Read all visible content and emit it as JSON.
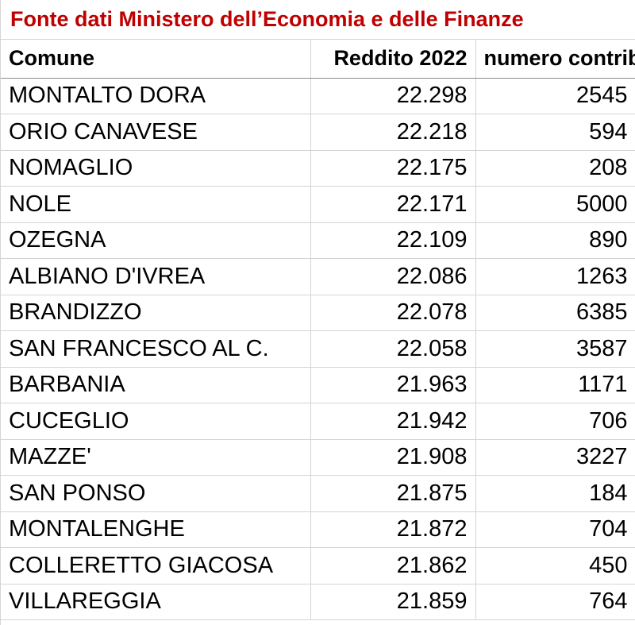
{
  "title": {
    "text": "Fonte dati Ministero dell’Economia e delle Finanze",
    "color": "#c00000"
  },
  "headers": {
    "comune": "Comune",
    "reddito": "Reddito 2022",
    "contribuenti": "numero contribuenti"
  },
  "rows": [
    {
      "comune": "MONTALTO DORA",
      "reddito": "22.298",
      "contribuenti": "2545"
    },
    {
      "comune": "ORIO CANAVESE",
      "reddito": "22.218",
      "contribuenti": "594"
    },
    {
      "comune": "NOMAGLIO",
      "reddito": "22.175",
      "contribuenti": "208"
    },
    {
      "comune": "NOLE",
      "reddito": "22.171",
      "contribuenti": "5000"
    },
    {
      "comune": "OZEGNA",
      "reddito": "22.109",
      "contribuenti": "890"
    },
    {
      "comune": "ALBIANO D'IVREA",
      "reddito": "22.086",
      "contribuenti": "1263"
    },
    {
      "comune": "BRANDIZZO",
      "reddito": "22.078",
      "contribuenti": "6385"
    },
    {
      "comune": "SAN FRANCESCO AL C.",
      "reddito": "22.058",
      "contribuenti": "3587"
    },
    {
      "comune": "BARBANIA",
      "reddito": "21.963",
      "contribuenti": "1171"
    },
    {
      "comune": "CUCEGLIO",
      "reddito": "21.942",
      "contribuenti": "706"
    },
    {
      "comune": "MAZZE'",
      "reddito": "21.908",
      "contribuenti": "3227"
    },
    {
      "comune": "SAN PONSO",
      "reddito": "21.875",
      "contribuenti": "184"
    },
    {
      "comune": "MONTALENGHE",
      "reddito": "21.872",
      "contribuenti": "704"
    },
    {
      "comune": "COLLERETTO GIACOSA",
      "reddito": "21.862",
      "contribuenti": "450"
    },
    {
      "comune": "VILLAREGGIA",
      "reddito": "21.859",
      "contribuenti": "764"
    }
  ]
}
